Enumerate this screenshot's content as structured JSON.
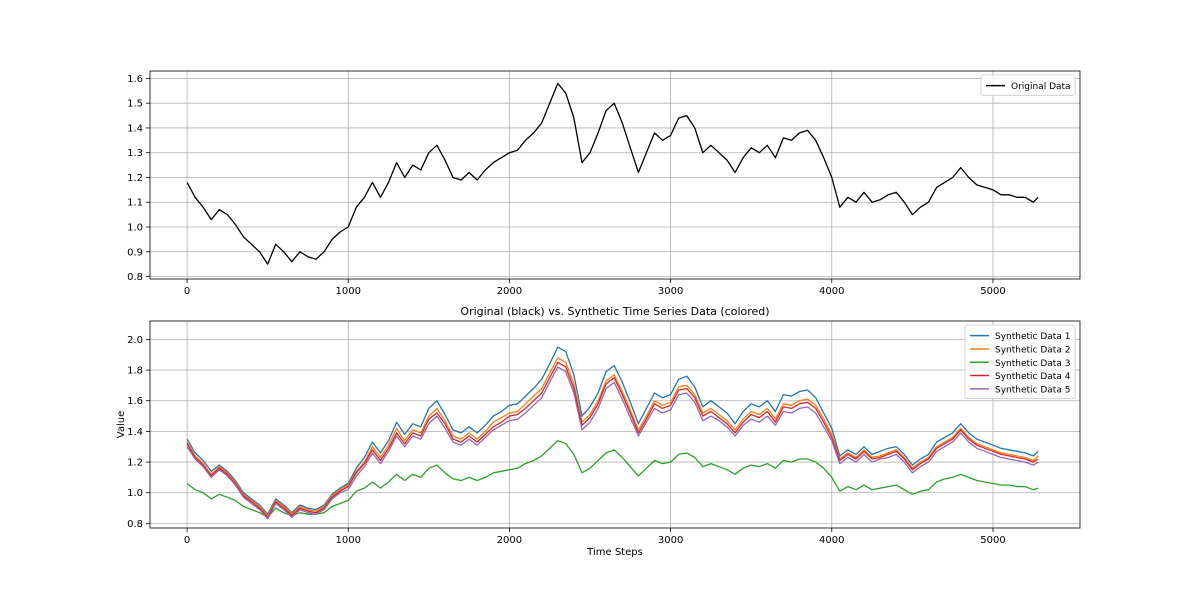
{
  "chart_data": [
    {
      "type": "line",
      "title": "",
      "xlabel": "",
      "ylabel": "",
      "xlim": [
        -230,
        5540
      ],
      "ylim": [
        0.79,
        1.63
      ],
      "xticks": [
        0,
        1000,
        2000,
        3000,
        4000,
        5000
      ],
      "yticks": [
        0.8,
        0.9,
        1.0,
        1.1,
        1.2,
        1.3,
        1.4,
        1.5,
        1.6
      ],
      "grid": true,
      "legend_position": "top-right",
      "series": [
        {
          "name": "Original Data",
          "color": "#000000",
          "x": [
            0,
            50,
            100,
            150,
            200,
            250,
            300,
            350,
            400,
            450,
            500,
            550,
            600,
            650,
            700,
            750,
            800,
            850,
            900,
            950,
            1000,
            1050,
            1100,
            1150,
            1200,
            1250,
            1300,
            1350,
            1400,
            1450,
            1500,
            1550,
            1600,
            1650,
            1700,
            1750,
            1800,
            1850,
            1900,
            1950,
            2000,
            2050,
            2100,
            2150,
            2200,
            2250,
            2300,
            2350,
            2400,
            2450,
            2500,
            2550,
            2600,
            2650,
            2700,
            2750,
            2800,
            2850,
            2900,
            2950,
            3000,
            3050,
            3100,
            3150,
            3200,
            3250,
            3300,
            3350,
            3400,
            3450,
            3500,
            3550,
            3600,
            3650,
            3700,
            3750,
            3800,
            3850,
            3900,
            3950,
            4000,
            4050,
            4100,
            4150,
            4200,
            4250,
            4300,
            4350,
            4400,
            4450,
            4500,
            4550,
            4600,
            4650,
            4700,
            4750,
            4800,
            4850,
            4900,
            4950,
            5000,
            5050,
            5100,
            5150,
            5200,
            5250,
            5280
          ],
          "y": [
            1.18,
            1.12,
            1.08,
            1.03,
            1.07,
            1.05,
            1.01,
            0.96,
            0.93,
            0.9,
            0.85,
            0.93,
            0.9,
            0.86,
            0.9,
            0.88,
            0.87,
            0.9,
            0.95,
            0.98,
            1.0,
            1.08,
            1.12,
            1.18,
            1.12,
            1.18,
            1.26,
            1.2,
            1.25,
            1.23,
            1.3,
            1.33,
            1.27,
            1.2,
            1.19,
            1.22,
            1.19,
            1.23,
            1.26,
            1.28,
            1.3,
            1.31,
            1.35,
            1.38,
            1.42,
            1.5,
            1.58,
            1.54,
            1.44,
            1.26,
            1.3,
            1.38,
            1.47,
            1.5,
            1.42,
            1.32,
            1.22,
            1.3,
            1.38,
            1.35,
            1.37,
            1.44,
            1.45,
            1.4,
            1.3,
            1.33,
            1.3,
            1.27,
            1.22,
            1.28,
            1.32,
            1.3,
            1.33,
            1.28,
            1.36,
            1.35,
            1.38,
            1.39,
            1.35,
            1.28,
            1.2,
            1.08,
            1.12,
            1.1,
            1.14,
            1.1,
            1.11,
            1.13,
            1.14,
            1.1,
            1.05,
            1.08,
            1.1,
            1.16,
            1.18,
            1.2,
            1.24,
            1.2,
            1.17,
            1.16,
            1.15,
            1.13,
            1.13,
            1.12,
            1.12,
            1.1,
            1.12
          ]
        }
      ]
    },
    {
      "type": "line",
      "title": "Original (black) vs. Synthetic Time Series Data (colored)",
      "xlabel": "Time Steps",
      "ylabel": "Value",
      "xlim": [
        -230,
        5540
      ],
      "ylim": [
        0.77,
        2.12
      ],
      "xticks": [
        0,
        1000,
        2000,
        3000,
        4000,
        5000
      ],
      "yticks": [
        0.8,
        1.0,
        1.2,
        1.4,
        1.6,
        1.8,
        2.0
      ],
      "grid": true,
      "legend_position": "top-right",
      "x": [
        0,
        50,
        100,
        150,
        200,
        250,
        300,
        350,
        400,
        450,
        500,
        550,
        600,
        650,
        700,
        750,
        800,
        850,
        900,
        950,
        1000,
        1050,
        1100,
        1150,
        1200,
        1250,
        1300,
        1350,
        1400,
        1450,
        1500,
        1550,
        1600,
        1650,
        1700,
        1750,
        1800,
        1850,
        1900,
        1950,
        2000,
        2050,
        2100,
        2150,
        2200,
        2250,
        2300,
        2350,
        2400,
        2450,
        2500,
        2550,
        2600,
        2650,
        2700,
        2750,
        2800,
        2850,
        2900,
        2950,
        3000,
        3050,
        3100,
        3150,
        3200,
        3250,
        3300,
        3350,
        3400,
        3450,
        3500,
        3550,
        3600,
        3650,
        3700,
        3750,
        3800,
        3850,
        3900,
        3950,
        4000,
        4050,
        4100,
        4150,
        4200,
        4250,
        4300,
        4350,
        4400,
        4450,
        4500,
        4550,
        4600,
        4650,
        4700,
        4750,
        4800,
        4850,
        4900,
        4950,
        5000,
        5050,
        5100,
        5150,
        5200,
        5250,
        5280
      ],
      "series": [
        {
          "name": "Synthetic Data 1",
          "color": "#1f77b4",
          "y": [
            1.35,
            1.26,
            1.21,
            1.14,
            1.18,
            1.14,
            1.08,
            1.0,
            0.96,
            0.92,
            0.86,
            0.96,
            0.92,
            0.87,
            0.92,
            0.9,
            0.89,
            0.92,
            0.99,
            1.03,
            1.06,
            1.16,
            1.23,
            1.33,
            1.26,
            1.34,
            1.46,
            1.38,
            1.45,
            1.43,
            1.55,
            1.6,
            1.51,
            1.41,
            1.39,
            1.43,
            1.39,
            1.44,
            1.5,
            1.53,
            1.57,
            1.58,
            1.63,
            1.68,
            1.74,
            1.84,
            1.95,
            1.92,
            1.77,
            1.5,
            1.56,
            1.65,
            1.79,
            1.83,
            1.72,
            1.59,
            1.45,
            1.55,
            1.65,
            1.62,
            1.64,
            1.74,
            1.76,
            1.69,
            1.56,
            1.6,
            1.56,
            1.52,
            1.45,
            1.53,
            1.58,
            1.56,
            1.6,
            1.53,
            1.64,
            1.63,
            1.66,
            1.67,
            1.62,
            1.52,
            1.42,
            1.24,
            1.28,
            1.25,
            1.3,
            1.25,
            1.27,
            1.29,
            1.3,
            1.25,
            1.18,
            1.22,
            1.25,
            1.33,
            1.36,
            1.39,
            1.45,
            1.39,
            1.35,
            1.33,
            1.31,
            1.29,
            1.28,
            1.27,
            1.26,
            1.24,
            1.27
          ]
        },
        {
          "name": "Synthetic Data 2",
          "color": "#ff7f0e",
          "y": [
            1.33,
            1.24,
            1.19,
            1.12,
            1.17,
            1.13,
            1.07,
            0.99,
            0.95,
            0.91,
            0.85,
            0.95,
            0.91,
            0.86,
            0.91,
            0.89,
            0.88,
            0.91,
            0.98,
            1.02,
            1.05,
            1.14,
            1.2,
            1.3,
            1.23,
            1.31,
            1.42,
            1.34,
            1.41,
            1.39,
            1.5,
            1.55,
            1.47,
            1.37,
            1.35,
            1.39,
            1.35,
            1.4,
            1.46,
            1.49,
            1.52,
            1.53,
            1.58,
            1.63,
            1.68,
            1.78,
            1.88,
            1.85,
            1.71,
            1.46,
            1.51,
            1.6,
            1.73,
            1.77,
            1.66,
            1.54,
            1.41,
            1.5,
            1.6,
            1.57,
            1.59,
            1.69,
            1.7,
            1.64,
            1.52,
            1.55,
            1.51,
            1.47,
            1.41,
            1.48,
            1.53,
            1.51,
            1.55,
            1.48,
            1.58,
            1.57,
            1.6,
            1.61,
            1.57,
            1.48,
            1.38,
            1.22,
            1.26,
            1.23,
            1.28,
            1.23,
            1.24,
            1.26,
            1.28,
            1.23,
            1.16,
            1.2,
            1.23,
            1.3,
            1.33,
            1.36,
            1.42,
            1.36,
            1.32,
            1.3,
            1.28,
            1.26,
            1.25,
            1.24,
            1.23,
            1.21,
            1.24
          ]
        },
        {
          "name": "Synthetic Data 3",
          "color": "#2ca02c",
          "y": [
            1.06,
            1.02,
            1.0,
            0.96,
            0.99,
            0.97,
            0.95,
            0.91,
            0.89,
            0.87,
            0.84,
            0.9,
            0.87,
            0.85,
            0.87,
            0.86,
            0.86,
            0.87,
            0.91,
            0.93,
            0.95,
            1.01,
            1.03,
            1.07,
            1.03,
            1.07,
            1.12,
            1.08,
            1.12,
            1.1,
            1.16,
            1.18,
            1.13,
            1.09,
            1.08,
            1.1,
            1.08,
            1.1,
            1.13,
            1.14,
            1.15,
            1.16,
            1.19,
            1.21,
            1.24,
            1.29,
            1.34,
            1.32,
            1.25,
            1.13,
            1.16,
            1.21,
            1.26,
            1.28,
            1.23,
            1.17,
            1.11,
            1.16,
            1.21,
            1.19,
            1.2,
            1.25,
            1.26,
            1.23,
            1.17,
            1.19,
            1.17,
            1.15,
            1.12,
            1.16,
            1.18,
            1.17,
            1.19,
            1.16,
            1.21,
            1.2,
            1.22,
            1.22,
            1.2,
            1.16,
            1.1,
            1.01,
            1.04,
            1.02,
            1.05,
            1.02,
            1.03,
            1.04,
            1.05,
            1.02,
            0.99,
            1.01,
            1.02,
            1.07,
            1.09,
            1.1,
            1.12,
            1.1,
            1.08,
            1.07,
            1.06,
            1.05,
            1.05,
            1.04,
            1.04,
            1.02,
            1.03
          ]
        },
        {
          "name": "Synthetic Data 4",
          "color": "#d62728",
          "y": [
            1.32,
            1.23,
            1.18,
            1.11,
            1.16,
            1.12,
            1.06,
            0.98,
            0.94,
            0.9,
            0.84,
            0.94,
            0.9,
            0.85,
            0.9,
            0.88,
            0.87,
            0.9,
            0.97,
            1.01,
            1.04,
            1.13,
            1.19,
            1.28,
            1.21,
            1.29,
            1.39,
            1.32,
            1.39,
            1.37,
            1.48,
            1.52,
            1.45,
            1.35,
            1.33,
            1.37,
            1.33,
            1.38,
            1.43,
            1.46,
            1.5,
            1.51,
            1.55,
            1.6,
            1.65,
            1.75,
            1.85,
            1.82,
            1.68,
            1.44,
            1.49,
            1.58,
            1.71,
            1.75,
            1.64,
            1.52,
            1.39,
            1.48,
            1.58,
            1.55,
            1.57,
            1.67,
            1.68,
            1.62,
            1.5,
            1.53,
            1.49,
            1.45,
            1.39,
            1.46,
            1.51,
            1.49,
            1.53,
            1.46,
            1.56,
            1.55,
            1.58,
            1.59,
            1.55,
            1.46,
            1.36,
            1.21,
            1.25,
            1.22,
            1.27,
            1.22,
            1.23,
            1.25,
            1.27,
            1.22,
            1.15,
            1.19,
            1.22,
            1.29,
            1.32,
            1.35,
            1.41,
            1.35,
            1.31,
            1.29,
            1.27,
            1.25,
            1.24,
            1.23,
            1.22,
            1.2,
            1.22
          ]
        },
        {
          "name": "Synthetic Data 5",
          "color": "#9467bd",
          "y": [
            1.3,
            1.22,
            1.17,
            1.1,
            1.15,
            1.11,
            1.05,
            0.97,
            0.93,
            0.89,
            0.83,
            0.93,
            0.89,
            0.84,
            0.89,
            0.87,
            0.86,
            0.89,
            0.96,
            1.0,
            1.02,
            1.11,
            1.17,
            1.26,
            1.19,
            1.27,
            1.37,
            1.3,
            1.37,
            1.35,
            1.45,
            1.5,
            1.42,
            1.33,
            1.31,
            1.35,
            1.31,
            1.36,
            1.41,
            1.44,
            1.47,
            1.48,
            1.52,
            1.57,
            1.62,
            1.72,
            1.82,
            1.79,
            1.65,
            1.41,
            1.46,
            1.55,
            1.68,
            1.72,
            1.61,
            1.49,
            1.37,
            1.46,
            1.55,
            1.52,
            1.54,
            1.64,
            1.65,
            1.59,
            1.47,
            1.5,
            1.47,
            1.43,
            1.37,
            1.44,
            1.48,
            1.46,
            1.5,
            1.44,
            1.53,
            1.52,
            1.55,
            1.56,
            1.52,
            1.43,
            1.34,
            1.19,
            1.23,
            1.2,
            1.25,
            1.2,
            1.22,
            1.23,
            1.25,
            1.2,
            1.13,
            1.17,
            1.2,
            1.27,
            1.3,
            1.33,
            1.39,
            1.33,
            1.29,
            1.27,
            1.25,
            1.23,
            1.22,
            1.21,
            1.2,
            1.18,
            1.2
          ]
        }
      ]
    }
  ]
}
